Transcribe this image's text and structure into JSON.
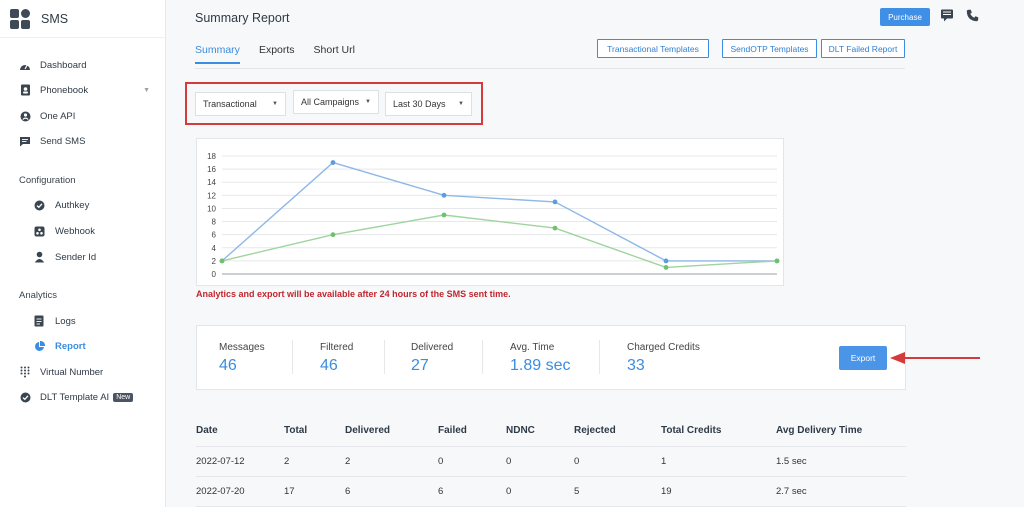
{
  "brand": {
    "name": "SMS"
  },
  "sidebar": {
    "items": [
      {
        "label": "Dashboard",
        "icon": "dashboard-icon"
      },
      {
        "label": "Phonebook",
        "icon": "phonebook-icon"
      },
      {
        "label": "One API",
        "icon": "api-icon"
      },
      {
        "label": "Send SMS",
        "icon": "send-sms-icon"
      }
    ],
    "config_title": "Configuration",
    "config_items": [
      {
        "label": "Authkey",
        "icon": "check-circle-icon"
      },
      {
        "label": "Webhook",
        "icon": "webhook-icon"
      },
      {
        "label": "Sender Id",
        "icon": "person-icon"
      }
    ],
    "analytics_title": "Analytics",
    "analytics_items": [
      {
        "label": "Logs",
        "icon": "logs-icon"
      },
      {
        "label": "Report",
        "icon": "pie-chart-icon"
      }
    ],
    "bottom_items": [
      {
        "label": "Virtual Number",
        "icon": "dialpad-icon"
      },
      {
        "label": "DLT Template AI",
        "icon": "check-circle-icon",
        "badge": "New"
      }
    ]
  },
  "header": {
    "title": "Summary Report",
    "purchase_label": "Purchase"
  },
  "tabs": [
    {
      "label": "Summary",
      "active": true
    },
    {
      "label": "Exports",
      "active": false
    },
    {
      "label": "Short Url",
      "active": false
    }
  ],
  "actions": {
    "transactional_templates": "Transactional Templates",
    "sendotp_templates": "SendOTP Templates",
    "dlt_failed_report": "DLT Failed Report"
  },
  "filters": {
    "type": "Transactional",
    "campaign": "All Campaigns",
    "range": "Last 30 Days"
  },
  "chart_data": {
    "type": "line",
    "x": [
      0,
      1,
      2,
      3,
      4,
      5
    ],
    "series": [
      {
        "values": [
          2,
          17,
          12,
          11,
          2,
          2
        ],
        "color": "#8fb8e6"
      },
      {
        "values": [
          2,
          6,
          9,
          7,
          1,
          2
        ],
        "color": "#9fd49f"
      }
    ],
    "yticks": [
      "0",
      "2",
      "4",
      "6",
      "8",
      "10",
      "12",
      "14",
      "16",
      "18"
    ],
    "ylim": [
      0,
      18
    ],
    "grid": true
  },
  "chart_note": "Analytics and export will be available after 24 hours of the SMS sent time.",
  "stats": {
    "messages_label": "Messages",
    "messages_value": "46",
    "filtered_label": "Filtered",
    "filtered_value": "46",
    "delivered_label": "Delivered",
    "delivered_value": "27",
    "avg_time_label": "Avg. Time",
    "avg_time_value": "1.89 sec",
    "charged_label": "Charged Credits",
    "charged_value": "33",
    "export_label": "Export"
  },
  "table": {
    "headers": [
      "Date",
      "Total",
      "Delivered",
      "Failed",
      "NDNC",
      "Rejected",
      "Total Credits",
      "Avg Delivery Time"
    ],
    "rows": [
      [
        "2022-07-12",
        "2",
        "2",
        "0",
        "0",
        "0",
        "1",
        "1.5 sec"
      ],
      [
        "2022-07-20",
        "17",
        "6",
        "6",
        "0",
        "5",
        "19",
        "2.7 sec"
      ]
    ]
  },
  "colors": {
    "accent": "#3a8de0",
    "highlight": "#d53b3b"
  }
}
